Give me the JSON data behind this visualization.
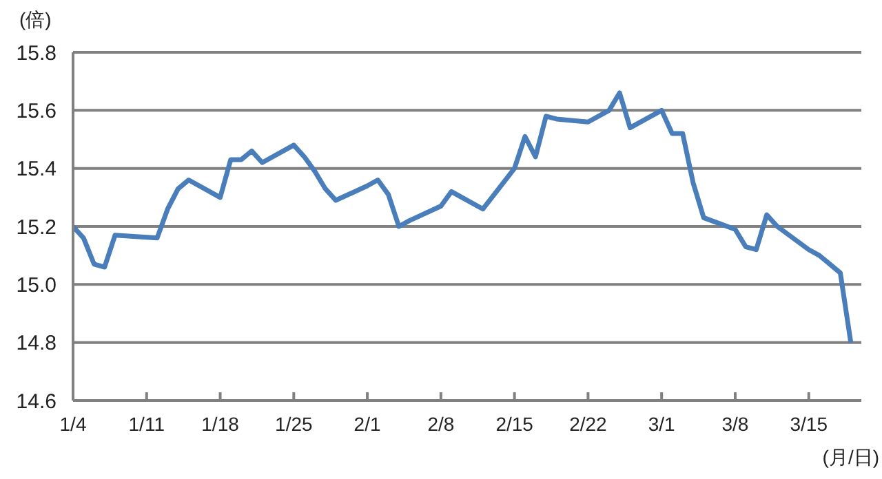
{
  "chart_data": {
    "type": "line",
    "ylabel": "(倍)",
    "xlabel": "(月/日)",
    "x": [
      "--01-04",
      "--01-05",
      "--01-06",
      "--01-07",
      "--01-08",
      "--01-12",
      "--01-13",
      "--01-14",
      "--01-15",
      "--01-18",
      "--01-19",
      "--01-20",
      "--01-21",
      "--01-22",
      "--01-25",
      "--01-26",
      "--01-27",
      "--01-28",
      "--01-29",
      "--02-01",
      "--02-02",
      "--02-03",
      "--02-04",
      "--02-05",
      "--02-08",
      "--02-09",
      "--02-10",
      "--02-12",
      "--02-15",
      "--02-16",
      "--02-17",
      "--02-18",
      "--02-19",
      "--02-22",
      "--02-24",
      "--02-25",
      "--02-26",
      "--03-01",
      "--03-02",
      "--03-03",
      "--03-04",
      "--03-05",
      "--03-08",
      "--03-09",
      "--03-10",
      "--03-11",
      "--03-12",
      "--03-15",
      "--03-16",
      "--03-17",
      "--03-18",
      "--03-19"
    ],
    "series": [
      {
        "color": "#4a7ebb",
        "values": [
          15.2,
          15.16,
          15.07,
          15.06,
          15.17,
          15.16,
          15.26,
          15.33,
          15.36,
          15.3,
          15.43,
          15.43,
          15.46,
          15.42,
          15.48,
          15.44,
          15.39,
          15.33,
          15.29,
          15.34,
          15.36,
          15.31,
          15.2,
          15.22,
          15.27,
          15.32,
          15.3,
          15.26,
          15.4,
          15.51,
          15.44,
          15.58,
          15.57,
          15.56,
          15.6,
          15.66,
          15.54,
          15.6,
          15.52,
          15.52,
          15.35,
          15.23,
          15.19,
          15.13,
          15.12,
          15.24,
          15.2,
          15.12,
          15.1,
          15.07,
          15.04,
          14.8
        ]
      }
    ],
    "xlim": [
      "--01-04",
      "--03-20"
    ],
    "xticks": [
      {
        "value": "--01-04",
        "label": "1/4"
      },
      {
        "value": "--01-11",
        "label": "1/11"
      },
      {
        "value": "--01-18",
        "label": "1/18"
      },
      {
        "value": "--01-25",
        "label": "1/25"
      },
      {
        "value": "--02-01",
        "label": "2/1"
      },
      {
        "value": "--02-08",
        "label": "2/8"
      },
      {
        "value": "--02-15",
        "label": "2/15"
      },
      {
        "value": "--02-22",
        "label": "2/22"
      },
      {
        "value": "--03-01",
        "label": "3/1"
      },
      {
        "value": "--03-08",
        "label": "3/8"
      },
      {
        "value": "--03-15",
        "label": "3/15"
      }
    ],
    "ylim": [
      14.6,
      15.8
    ],
    "yticks": [
      14.6,
      14.8,
      {
        "value": 15,
        "label": "15.0"
      },
      15.2,
      15.4,
      15.6,
      15.8
    ],
    "grid": "y",
    "legend": false,
    "marker": "none",
    "line_style": "solid"
  }
}
